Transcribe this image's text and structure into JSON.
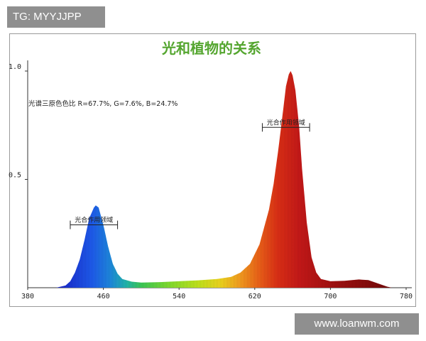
{
  "badge": {
    "text": "TG: MYYJJPP"
  },
  "watermark": {
    "text": "www.loanwm.com"
  },
  "colors": {
    "title": "#55a630",
    "frame": "#9a9a9a",
    "badge_bg": "#8f8f8f"
  },
  "chart_data": {
    "type": "area",
    "title": "光和植物的关系",
    "xlabel": "",
    "ylabel": "",
    "xlim": [
      380,
      780
    ],
    "ylim": [
      0,
      1.0
    ],
    "x_ticks": [
      380,
      460,
      540,
      620,
      700,
      780
    ],
    "y_ticks": [
      {
        "value": 0.5,
        "label": "0.5"
      },
      {
        "value": 1.0,
        "label": "1.0"
      }
    ],
    "grid": false,
    "fill": "visible-spectrum gradient",
    "series": [
      {
        "points": [
          [
            410,
            0.0
          ],
          [
            420,
            0.01
          ],
          [
            425,
            0.03
          ],
          [
            430,
            0.07
          ],
          [
            435,
            0.13
          ],
          [
            440,
            0.22
          ],
          [
            445,
            0.32
          ],
          [
            450,
            0.37
          ],
          [
            452,
            0.38
          ],
          [
            455,
            0.37
          ],
          [
            460,
            0.29
          ],
          [
            465,
            0.19
          ],
          [
            470,
            0.11
          ],
          [
            475,
            0.065
          ],
          [
            480,
            0.04
          ],
          [
            490,
            0.028
          ],
          [
            500,
            0.024
          ],
          [
            520,
            0.026
          ],
          [
            540,
            0.03
          ],
          [
            560,
            0.034
          ],
          [
            580,
            0.04
          ],
          [
            595,
            0.05
          ],
          [
            605,
            0.07
          ],
          [
            615,
            0.11
          ],
          [
            625,
            0.2
          ],
          [
            635,
            0.36
          ],
          [
            640,
            0.48
          ],
          [
            645,
            0.64
          ],
          [
            650,
            0.82
          ],
          [
            653,
            0.93
          ],
          [
            656,
            0.985
          ],
          [
            658,
            1.0
          ],
          [
            660,
            0.98
          ],
          [
            663,
            0.91
          ],
          [
            667,
            0.74
          ],
          [
            670,
            0.55
          ],
          [
            675,
            0.3
          ],
          [
            680,
            0.14
          ],
          [
            685,
            0.07
          ],
          [
            690,
            0.04
          ],
          [
            700,
            0.03
          ],
          [
            715,
            0.032
          ],
          [
            730,
            0.038
          ],
          [
            740,
            0.035
          ],
          [
            750,
            0.02
          ],
          [
            760,
            0.005
          ],
          [
            765,
            0.0
          ]
        ]
      }
    ],
    "annotations": [
      {
        "text": "光谱三原色色比  R=67.7%,   G=7.6%,   B=24.7%"
      },
      {
        "text": "光合作用领域",
        "x_range": [
          425,
          475
        ],
        "y": 0.29
      },
      {
        "text": "光合作用领域",
        "x_range": [
          628,
          678
        ],
        "y": 0.74
      }
    ]
  }
}
